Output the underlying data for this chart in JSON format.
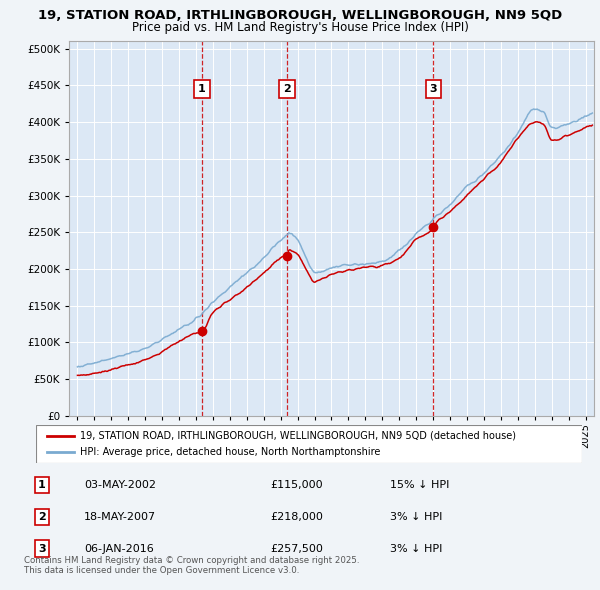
{
  "title_line1": "19, STATION ROAD, IRTHLINGBOROUGH, WELLINGBOROUGH, NN9 5QD",
  "title_line2": "Price paid vs. HM Land Registry's House Price Index (HPI)",
  "hpi_label": "HPI: Average price, detached house, North Northamptonshire",
  "price_label": "19, STATION ROAD, IRTHLINGBOROUGH, WELLINGBOROUGH, NN9 5QD (detached house)",
  "sales": [
    {
      "num": 1,
      "date": "03-MAY-2002",
      "price": 115000,
      "note": "15% ↓ HPI",
      "year": 2002.35
    },
    {
      "num": 2,
      "date": "18-MAY-2007",
      "price": 218000,
      "note": "3% ↓ HPI",
      "year": 2007.38
    },
    {
      "num": 3,
      "date": "06-JAN-2016",
      "price": 257500,
      "note": "3% ↓ HPI",
      "year": 2016.02
    }
  ],
  "hpi_color": "#7aaad0",
  "price_color": "#cc0000",
  "background_color": "#f0f4f8",
  "plot_bg_color": "#dce8f5",
  "grid_color": "#ffffff",
  "footnote": "Contains HM Land Registry data © Crown copyright and database right 2025.\nThis data is licensed under the Open Government Licence v3.0.",
  "ylim": [
    0,
    510000
  ],
  "yticks": [
    0,
    50000,
    100000,
    150000,
    200000,
    250000,
    300000,
    350000,
    400000,
    450000,
    500000
  ],
  "xlim": [
    1994.5,
    2025.5
  ],
  "xticks": [
    1995,
    1996,
    1997,
    1998,
    1999,
    2000,
    2001,
    2002,
    2003,
    2004,
    2005,
    2006,
    2007,
    2008,
    2009,
    2010,
    2011,
    2012,
    2013,
    2014,
    2015,
    2016,
    2017,
    2018,
    2019,
    2020,
    2021,
    2022,
    2023,
    2024,
    2025
  ]
}
